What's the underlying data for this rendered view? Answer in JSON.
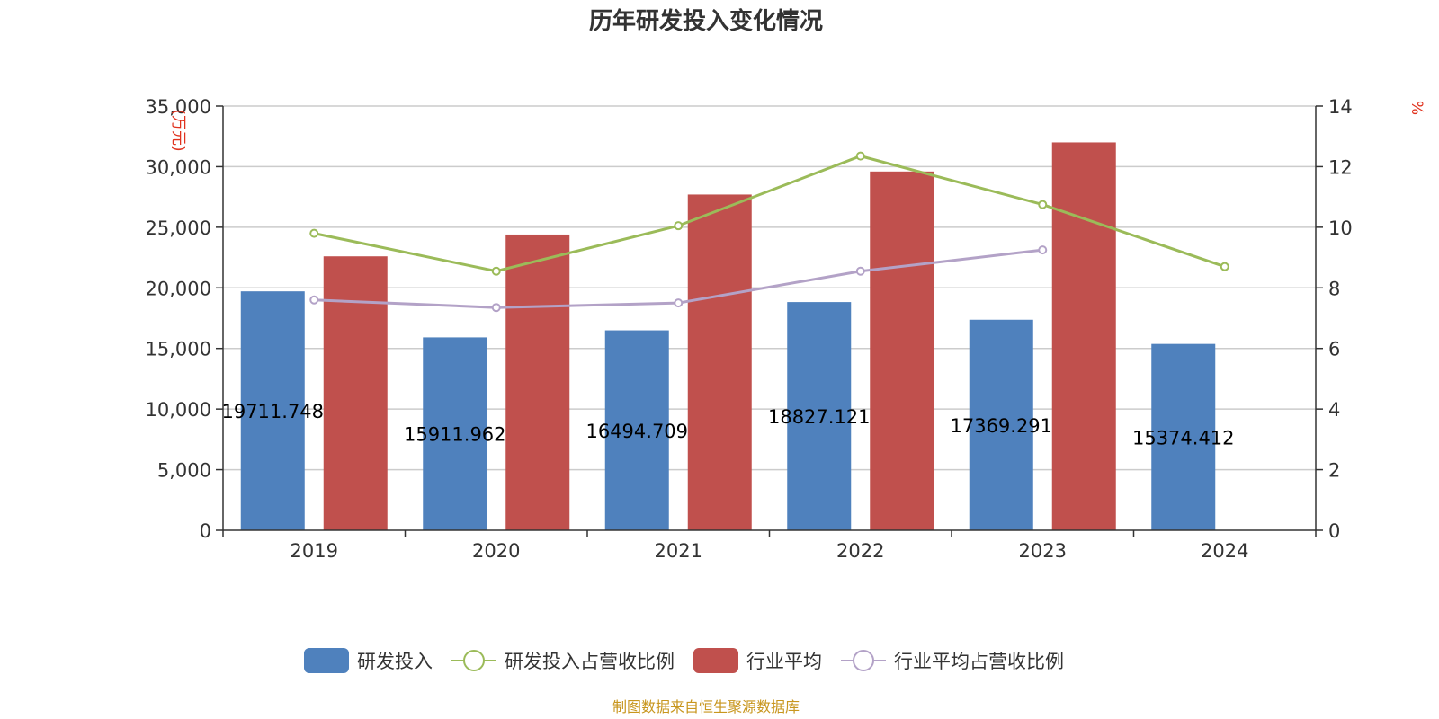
{
  "chart_data": {
    "type": "bar",
    "title": "历年研发投入变化情况",
    "categories": [
      "2019",
      "2020",
      "2021",
      "2022",
      "2023",
      "2024"
    ],
    "y_left": {
      "unit_label": "(万元)",
      "ylim": [
        0,
        35000
      ],
      "ticks": [
        0,
        5000,
        10000,
        15000,
        20000,
        25000,
        30000,
        35000
      ],
      "tick_labels": [
        "0",
        "5,000",
        "10,000",
        "15,000",
        "20,000",
        "25,000",
        "30,000",
        "35,000"
      ]
    },
    "y_right": {
      "unit_label": "%",
      "ylim": [
        0,
        14
      ],
      "ticks": [
        0,
        2,
        4,
        6,
        8,
        10,
        12,
        14
      ],
      "tick_labels": [
        "0",
        "2",
        "4",
        "6",
        "8",
        "10",
        "12",
        "14"
      ]
    },
    "series": [
      {
        "name": "研发投入",
        "kind": "bar",
        "axis": "left",
        "color": "#4f81bd",
        "values": [
          19711.748,
          15911.962,
          16494.709,
          18827.121,
          17369.291,
          15374.412
        ],
        "data_labels": [
          "19711.748",
          "15911.962",
          "16494.709",
          "18827.121",
          "17369.291",
          "15374.412"
        ]
      },
      {
        "name": "研发投入占营收比例",
        "kind": "line",
        "axis": "right",
        "color": "#9bbb59",
        "values": [
          9.8,
          8.55,
          10.05,
          12.35,
          10.75,
          8.7
        ]
      },
      {
        "name": "行业平均",
        "kind": "bar",
        "axis": "left",
        "color": "#c0504d",
        "values": [
          22600,
          24400,
          27700,
          29600,
          32000,
          null
        ]
      },
      {
        "name": "行业平均占营收比例",
        "kind": "line",
        "axis": "right",
        "color": "#b3a2c7",
        "values": [
          7.6,
          7.35,
          7.5,
          8.55,
          9.25,
          null
        ]
      }
    ],
    "grid": true,
    "legend_position": "bottom",
    "source_note": "制图数据来自恒生聚源数据库"
  }
}
